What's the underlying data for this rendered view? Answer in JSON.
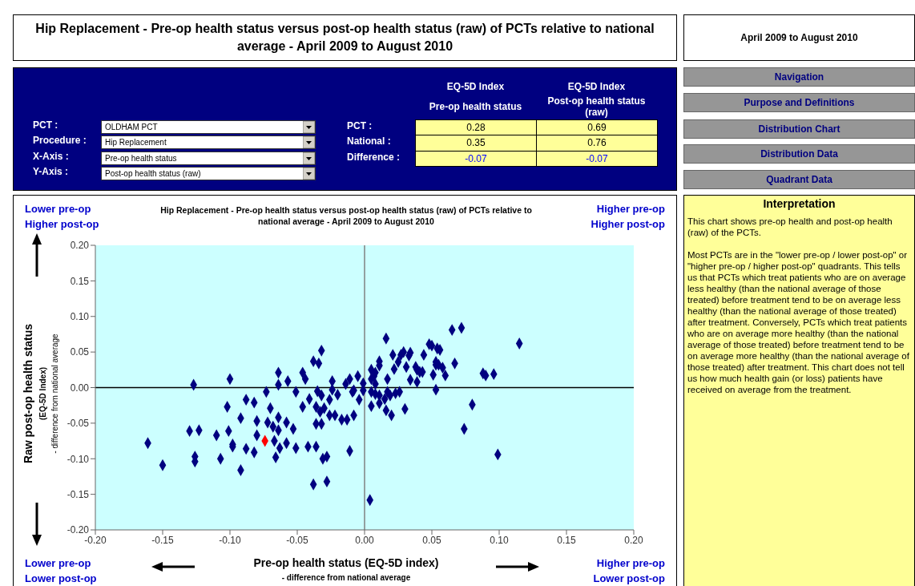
{
  "chart_data": [
    {
      "type": "other",
      "title": "Hip Replacement - Pre-op health status versus post-op health status (raw) of PCTs relative to national average - April 2009 to August 2010"
    },
    {
      "type": "other",
      "title": "April 2009 to August 2010"
    },
    {
      "type": "other",
      "annotations": [
        "PCT :",
        "OLDHAM PCT",
        "Procedure :",
        "Hip Replacement",
        "X-Axis :",
        "Pre-op health status",
        "Y-Axis :",
        "Post-op health status (raw)"
      ]
    },
    {
      "type": "other",
      "annotations": [
        "EQ-5D Index",
        "Pre-op health status",
        "EQ-5D Index",
        "Post-op health status (raw)",
        "PCT :",
        "0.28",
        "0.69",
        "National :",
        "0.35",
        "0.76",
        "Difference :",
        "-0.07",
        "-0.07"
      ]
    },
    {
      "type": "other",
      "annotations": [
        "Navigation",
        "Purpose and Definitions",
        "Distribution Chart",
        "Distribution Data",
        "Quadrant Data"
      ]
    },
    {
      "type": "scatter",
      "title": "Hip Replacement - Pre-op health status versus post-op health status (raw) of PCTs relative to national average - April 2009 to August 2010",
      "xlabel": "Pre-op health status (EQ-5D index)",
      "ylabel": "Raw post-op health status",
      "annotations": [
        "Lower pre-op",
        "Higher post-op",
        "Higher pre-op",
        "Higher post-op",
        "Lower pre-op",
        "Lower post-op",
        "Higher pre-op",
        "Lower post-op",
        "(EQ-5D Index)",
        "- difference from national average",
        "- difference from national average"
      ],
      "marker": "diamond",
      "xlim": [
        -0.2,
        0.2
      ],
      "ylim": [
        -0.2,
        0.2
      ],
      "xticks": [
        {
          "value": -0.2,
          "label": "-0.20"
        },
        {
          "value": -0.15,
          "label": "-0.15"
        },
        {
          "value": -0.1,
          "label": "-0.10"
        },
        {
          "value": -0.05,
          "label": "-0.05"
        },
        {
          "value": 0,
          "label": "0.00"
        },
        {
          "value": 0.05,
          "label": "0.05"
        },
        {
          "value": 0.1,
          "label": "0.10"
        },
        {
          "value": 0.15,
          "label": "0.15"
        },
        {
          "value": 0.2,
          "label": "0.20"
        }
      ],
      "yticks": [
        {
          "value": -0.2,
          "label": "-0.20"
        },
        {
          "value": -0.15,
          "label": "-0.15"
        },
        {
          "value": -0.1,
          "label": "-0.10"
        },
        {
          "value": -0.05,
          "label": "-0.05"
        },
        {
          "value": 0,
          "label": "0.00"
        },
        {
          "value": 0.05,
          "label": "0.05"
        },
        {
          "value": 0.1,
          "label": "0.10"
        },
        {
          "value": 0.15,
          "label": "0.15"
        },
        {
          "value": 0.2,
          "label": "0.20"
        }
      ],
      "ref_lines": [
        {
          "axis": "x",
          "value": 0,
          "color": "#808080"
        },
        {
          "axis": "y",
          "value": 0,
          "color": "#000000"
        }
      ],
      "series": [
        {
          "color": "#000080",
          "x": [
            -0.161,
            -0.15,
            -0.127,
            -0.1,
            -0.13,
            -0.123,
            -0.126,
            -0.126,
            -0.11,
            -0.107,
            -0.101,
            -0.102,
            -0.092,
            -0.098,
            -0.098,
            -0.088,
            -0.088,
            -0.092,
            -0.082,
            -0.073,
            -0.07,
            -0.064,
            -0.064,
            -0.057,
            -0.051,
            -0.046,
            -0.044,
            -0.041,
            -0.046,
            -0.038,
            -0.034,
            -0.032,
            -0.035,
            -0.032,
            -0.036,
            -0.033,
            -0.03,
            -0.026,
            -0.024,
            -0.024,
            -0.02,
            -0.014,
            -0.011,
            -0.009,
            -0.005,
            -0.004,
            -0.001,
            -0.026,
            -0.022,
            -0.017,
            -0.013,
            -0.008,
            -0.036,
            -0.032,
            -0.08,
            -0.072,
            -0.068,
            -0.064,
            -0.064,
            -0.058,
            -0.053,
            -0.08,
            -0.067,
            -0.063,
            -0.058,
            -0.051,
            -0.042,
            -0.036,
            -0.066,
            -0.082,
            -0.031,
            -0.028,
            -0.038,
            -0.028,
            -0.011,
            0.004,
            -0.008,
            -0.001,
            0.005,
            0.007,
            0.008,
            0.005,
            0.008,
            0.005,
            0.008,
            0.005,
            0.011,
            0.011,
            0.011,
            0.011,
            0.016,
            0.017,
            0.017,
            0.015,
            0.019,
            0.016,
            0.02,
            0.021,
            0.022,
            0.023,
            0.026,
            0.025,
            0.027,
            0.029,
            0.03,
            0.031,
            0.033,
            0.034,
            0.034,
            0.038,
            0.039,
            0.039,
            0.041,
            0.043,
            0.044,
            0.048,
            0.05,
            0.051,
            0.053,
            0.053,
            0.054,
            0.056,
            0.053,
            0.055,
            0.058,
            0.06,
            0.065,
            0.072,
            0.067,
            0.074,
            0.08,
            0.088,
            0.09,
            0.096,
            0.099,
            0.115
          ],
          "values": [
            -0.078,
            -0.109,
            0.004,
            0.012,
            -0.061,
            -0.06,
            -0.097,
            -0.104,
            -0.067,
            -0.1,
            -0.061,
            -0.027,
            -0.043,
            -0.08,
            -0.083,
            -0.017,
            -0.086,
            -0.116,
            -0.021,
            -0.006,
            -0.029,
            0.021,
            0.004,
            0.009,
            -0.006,
            0.021,
            0.012,
            -0.016,
            -0.027,
            0.037,
            0.034,
            0.052,
            -0.005,
            -0.011,
            -0.027,
            -0.034,
            -0.029,
            -0.017,
            0.009,
            -0.003,
            -0.01,
            0.005,
            0.012,
            -0.006,
            0.016,
            -0.017,
            0.006,
            -0.039,
            -0.039,
            -0.045,
            -0.045,
            -0.039,
            -0.051,
            -0.051,
            -0.047,
            -0.049,
            -0.055,
            -0.06,
            -0.042,
            -0.049,
            -0.058,
            -0.067,
            -0.075,
            -0.085,
            -0.078,
            -0.085,
            -0.083,
            -0.083,
            -0.098,
            -0.091,
            -0.1,
            -0.097,
            -0.136,
            -0.132,
            -0.089,
            -0.158,
            -0.004,
            -0.004,
            0.025,
            0.016,
            0.021,
            0.012,
            0.005,
            -0.006,
            -0.009,
            -0.026,
            -0.022,
            -0.011,
            0.037,
            0.031,
            0.069,
            0.012,
            -0.006,
            -0.016,
            -0.011,
            -0.032,
            -0.039,
            0.046,
            0.026,
            -0.008,
            -0.006,
            0.036,
            0.046,
            0.05,
            -0.03,
            0.029,
            0.045,
            0.049,
            0.011,
            0.029,
            0.025,
            0.008,
            0.022,
            0.022,
            0.046,
            0.061,
            0.059,
            0.018,
            -0.003,
            0.036,
            0.055,
            0.053,
            0.032,
            0.032,
            0.028,
            0.017,
            0.081,
            0.084,
            0.034,
            -0.058,
            -0.024,
            0.02,
            0.017,
            0.019,
            -0.094,
            0.062
          ]
        },
        {
          "color": "#ff0000",
          "x": [
            -0.074
          ],
          "values": [
            -0.075
          ]
        }
      ]
    },
    {
      "type": "other",
      "title": "Interpretation",
      "annotations": [
        "This chart shows pre-op health and post-op health (raw) of the PCTs.",
        "Most PCTs are in the \"lower pre-op / lower post-op\" or \"higher pre-op / higher post-op\" quadrants. This tells us that PCTs which treat patients who are on average less healthy (than the national average of those treated) before treatment tend to be on average less healthy (than the national average of those treated) after treatment. Conversely, PCTs which treat patients who are on average more healthy (than the national average of those treated) before treatment tend to be on average more healthy (than the national average of those treated) after treatment. This chart does not tell us how much health gain (or loss) patients have received on average from the treatment."
      ]
    }
  ]
}
